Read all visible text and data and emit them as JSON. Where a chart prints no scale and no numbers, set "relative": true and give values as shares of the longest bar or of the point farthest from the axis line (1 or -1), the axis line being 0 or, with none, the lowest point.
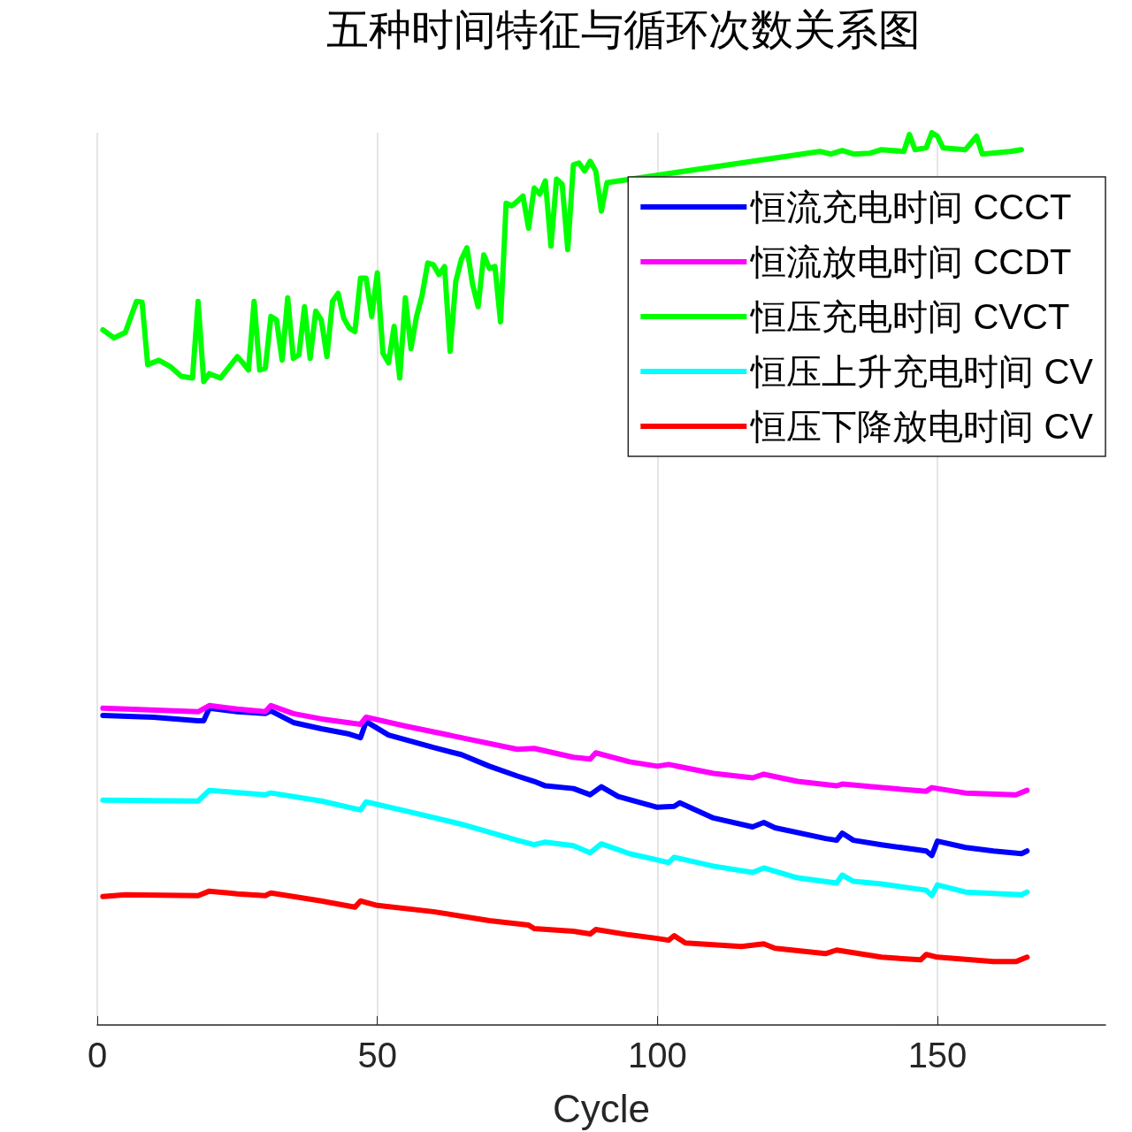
{
  "chart_data": {
    "type": "line",
    "title": "五种时间特征与循环次数关系图",
    "xlabel": "Cycle",
    "xlim": [
      0,
      180
    ],
    "xticks": [
      0,
      50,
      100,
      150
    ],
    "relative": true,
    "grid": "x",
    "legend": "top right",
    "line_style": "solid",
    "marker": "none",
    "series": [
      {
        "name": "恒流充电时间 CCCT",
        "color": "#0000ff",
        "x": [
          1,
          10,
          18,
          19,
          20,
          25,
          30,
          31,
          35,
          40,
          45,
          47,
          48,
          52,
          60,
          65,
          70,
          75,
          78,
          80,
          85,
          88,
          90,
          93,
          100,
          103,
          104,
          110,
          117,
          119,
          121,
          130,
          132,
          133,
          135,
          140,
          148,
          149,
          150,
          155,
          160,
          165,
          166
        ],
        "values": [
          0.347,
          0.345,
          0.341,
          0.341,
          0.355,
          0.351,
          0.349,
          0.352,
          0.339,
          0.332,
          0.326,
          0.322,
          0.34,
          0.325,
          0.311,
          0.303,
          0.29,
          0.279,
          0.273,
          0.268,
          0.265,
          0.258,
          0.267,
          0.256,
          0.244,
          0.245,
          0.249,
          0.232,
          0.222,
          0.227,
          0.221,
          0.209,
          0.207,
          0.215,
          0.207,
          0.202,
          0.195,
          0.19,
          0.206,
          0.199,
          0.195,
          0.192,
          0.195
        ]
      },
      {
        "name": "恒流放电时间 CCDT",
        "color": "#ff00ff",
        "x": [
          1,
          18,
          20,
          25,
          30,
          31,
          35,
          40,
          47,
          48,
          55,
          65,
          75,
          78,
          85,
          88,
          89,
          95,
          100,
          102,
          110,
          117,
          119,
          125,
          132,
          133,
          140,
          148,
          149,
          155,
          164,
          166
        ],
        "values": [
          0.355,
          0.351,
          0.358,
          0.354,
          0.351,
          0.358,
          0.349,
          0.343,
          0.337,
          0.345,
          0.335,
          0.322,
          0.309,
          0.31,
          0.3,
          0.298,
          0.305,
          0.295,
          0.29,
          0.292,
          0.282,
          0.277,
          0.281,
          0.273,
          0.268,
          0.27,
          0.266,
          0.262,
          0.266,
          0.26,
          0.258,
          0.263
        ]
      },
      {
        "name": "恒压充电时间 CVCT",
        "color": "#00ff00",
        "x": [
          1,
          3,
          5,
          7,
          8,
          9,
          11,
          13,
          15,
          17,
          18,
          19,
          20,
          22,
          25,
          26,
          27,
          28,
          29,
          30,
          31,
          32,
          33,
          34,
          35,
          36,
          37,
          38,
          39,
          40,
          41,
          42,
          43,
          44,
          45,
          46,
          47,
          48,
          49,
          50,
          51,
          52,
          53,
          54,
          55,
          56,
          57,
          58,
          59,
          60,
          61,
          62,
          63,
          64,
          65,
          66,
          67,
          68,
          69,
          70,
          71,
          72,
          73,
          74,
          75,
          76,
          77,
          78,
          79,
          80,
          81,
          82,
          83,
          84,
          85,
          86,
          87,
          88,
          89,
          90,
          91,
          129,
          131,
          133,
          135,
          138,
          140,
          144,
          145,
          146,
          148,
          149,
          150,
          151,
          155,
          157,
          158,
          163,
          165
        ],
        "values": [
          0.779,
          0.77,
          0.776,
          0.811,
          0.81,
          0.74,
          0.745,
          0.738,
          0.727,
          0.725,
          0.811,
          0.721,
          0.73,
          0.725,
          0.749,
          0.742,
          0.734,
          0.811,
          0.734,
          0.736,
          0.794,
          0.79,
          0.745,
          0.815,
          0.747,
          0.751,
          0.805,
          0.747,
          0.8,
          0.79,
          0.749,
          0.811,
          0.82,
          0.792,
          0.781,
          0.777,
          0.837,
          0.837,
          0.794,
          0.843,
          0.753,
          0.742,
          0.783,
          0.725,
          0.815,
          0.758,
          0.794,
          0.818,
          0.854,
          0.852,
          0.841,
          0.85,
          0.755,
          0.833,
          0.858,
          0.871,
          0.83,
          0.805,
          0.863,
          0.848,
          0.85,
          0.788,
          0.921,
          0.918,
          0.923,
          0.929,
          0.893,
          0.938,
          0.931,
          0.946,
          0.873,
          0.948,
          0.942,
          0.869,
          0.964,
          0.966,
          0.957,
          0.968,
          0.957,
          0.912,
          0.944,
          0.979,
          0.976,
          0.98,
          0.976,
          0.977,
          0.981,
          0.979,
          0.998,
          0.981,
          0.983,
          1,
          0.996,
          0.983,
          0.981,
          0.996,
          0.976,
          0.979,
          0.981
        ]
      },
      {
        "name": "恒压上升充电时间 CV",
        "color": "#00ffff",
        "x": [
          1,
          18,
          20,
          30,
          31,
          40,
          47,
          48,
          55,
          65,
          75,
          78,
          80,
          85,
          88,
          90,
          95,
          100,
          102,
          103,
          110,
          117,
          119,
          125,
          132,
          133,
          135,
          140,
          148,
          149,
          150,
          155,
          165,
          166
        ],
        "values": [
          0.252,
          0.251,
          0.263,
          0.258,
          0.26,
          0.251,
          0.241,
          0.25,
          0.24,
          0.225,
          0.207,
          0.202,
          0.205,
          0.201,
          0.193,
          0.203,
          0.192,
          0.185,
          0.182,
          0.188,
          0.178,
          0.171,
          0.176,
          0.165,
          0.159,
          0.168,
          0.161,
          0.158,
          0.151,
          0.145,
          0.157,
          0.149,
          0.146,
          0.149
        ]
      },
      {
        "name": "恒压下降放电时间 CV",
        "color": "#ff0000",
        "x": [
          1,
          5,
          18,
          20,
          25,
          30,
          31,
          40,
          46,
          47,
          50,
          60,
          70,
          77,
          78,
          85,
          88,
          89,
          95,
          100,
          102,
          103,
          105,
          115,
          119,
          121,
          130,
          132,
          140,
          147,
          148,
          150,
          160,
          164,
          166
        ],
        "values": [
          0.144,
          0.146,
          0.145,
          0.15,
          0.147,
          0.145,
          0.148,
          0.139,
          0.132,
          0.139,
          0.134,
          0.127,
          0.117,
          0.112,
          0.108,
          0.105,
          0.102,
          0.107,
          0.101,
          0.097,
          0.095,
          0.1,
          0.092,
          0.088,
          0.091,
          0.086,
          0.08,
          0.084,
          0.076,
          0.073,
          0.079,
          0.076,
          0.071,
          0.071,
          0.076
        ]
      }
    ]
  }
}
